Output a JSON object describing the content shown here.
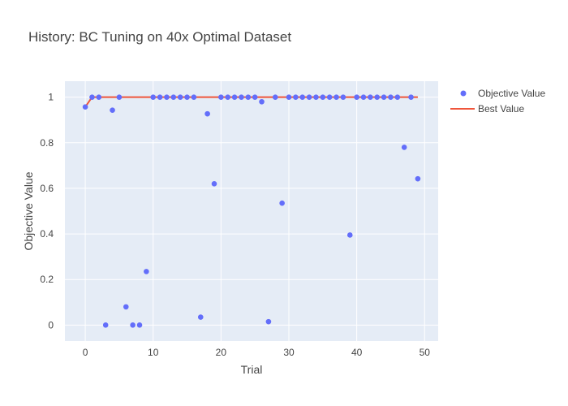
{
  "chart_data": {
    "type": "scatter",
    "title": "History: BC Tuning on 40x Optimal Dataset",
    "xlabel": "Trial",
    "ylabel": "Objective Value",
    "xlim": [
      -3,
      52
    ],
    "ylim": [
      -0.07,
      1.07
    ],
    "x_ticks": [
      0,
      10,
      20,
      30,
      40,
      50
    ],
    "y_ticks": [
      0,
      0.2,
      0.4,
      0.6,
      0.8,
      1
    ],
    "x_tick_labels": [
      "0",
      "10",
      "20",
      "30",
      "40",
      "50"
    ],
    "y_tick_labels": [
      "0",
      "0.2",
      "0.4",
      "0.6",
      "0.8",
      "1"
    ],
    "grid": true,
    "legend_position": "top-right",
    "colors": {
      "plot_bg": "#e5ecf6",
      "grid": "#ffffff",
      "objective": "#636efa",
      "best": "#ef553b"
    },
    "series": [
      {
        "name": "Objective Value",
        "mode": "markers",
        "x": [
          0,
          1,
          2,
          3,
          4,
          5,
          6,
          7,
          8,
          9,
          10,
          11,
          12,
          13,
          14,
          15,
          16,
          17,
          18,
          19,
          20,
          21,
          22,
          23,
          24,
          25,
          26,
          27,
          28,
          29,
          30,
          31,
          32,
          33,
          34,
          35,
          36,
          37,
          38,
          39,
          40,
          41,
          42,
          43,
          44,
          45,
          46,
          47,
          48,
          49
        ],
        "y": [
          0.957,
          1,
          1,
          0,
          0.943,
          1,
          0.08,
          0,
          0,
          0.235,
          1,
          1,
          1,
          1,
          1,
          1,
          1,
          0.035,
          0.927,
          0.62,
          1,
          1,
          1,
          1,
          1,
          1,
          0.98,
          0.015,
          1,
          0.535,
          1,
          1,
          1,
          1,
          1,
          1,
          1,
          1,
          1,
          0.395,
          1,
          1,
          1,
          1,
          1,
          1,
          1,
          0.78,
          1,
          0.642
        ]
      },
      {
        "name": "Best Value",
        "mode": "lines",
        "x": [
          0,
          1,
          2,
          3,
          4,
          5,
          6,
          7,
          8,
          9,
          10,
          11,
          12,
          13,
          14,
          15,
          16,
          17,
          18,
          19,
          20,
          21,
          22,
          23,
          24,
          25,
          26,
          27,
          28,
          29,
          30,
          31,
          32,
          33,
          34,
          35,
          36,
          37,
          38,
          39,
          40,
          41,
          42,
          43,
          44,
          45,
          46,
          47,
          48,
          49
        ],
        "y": [
          0.957,
          1,
          1,
          1,
          1,
          1,
          1,
          1,
          1,
          1,
          1,
          1,
          1,
          1,
          1,
          1,
          1,
          1,
          1,
          1,
          1,
          1,
          1,
          1,
          1,
          1,
          1,
          1,
          1,
          1,
          1,
          1,
          1,
          1,
          1,
          1,
          1,
          1,
          1,
          1,
          1,
          1,
          1,
          1,
          1,
          1,
          1,
          1,
          1,
          1
        ]
      }
    ]
  }
}
